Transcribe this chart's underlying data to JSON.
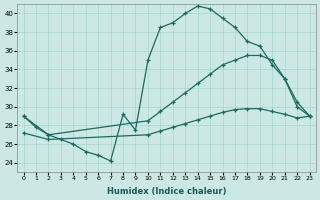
{
  "xlabel": "Humidex (Indice chaleur)",
  "background_color": "#cce8e4",
  "grid_color": "#aad4cf",
  "line_color": "#1a6b5e",
  "xlim": [
    -0.5,
    23.5
  ],
  "ylim": [
    23,
    41
  ],
  "xticks": [
    0,
    1,
    2,
    3,
    4,
    5,
    6,
    7,
    8,
    9,
    10,
    11,
    12,
    13,
    14,
    15,
    16,
    17,
    18,
    19,
    20,
    21,
    22,
    23
  ],
  "yticks": [
    24,
    26,
    28,
    30,
    32,
    34,
    36,
    38,
    40
  ],
  "curve1_x": [
    0,
    1,
    2,
    3,
    4,
    5,
    6,
    7,
    8,
    9,
    10,
    11,
    12,
    13,
    14,
    15,
    16,
    17,
    18,
    19,
    20,
    21,
    22,
    23
  ],
  "curve1_y": [
    29.0,
    27.8,
    27.0,
    26.5,
    26.0,
    25.2,
    24.8,
    24.2,
    29.2,
    27.5,
    35.0,
    38.5,
    39.0,
    40.0,
    40.8,
    40.5,
    39.5,
    38.5,
    37.0,
    36.5,
    34.5,
    33.0,
    30.0,
    29.0
  ],
  "curve2_x": [
    0,
    2,
    10,
    11,
    12,
    13,
    14,
    15,
    16,
    17,
    18,
    19,
    20,
    21,
    22,
    23
  ],
  "curve2_y": [
    29.0,
    27.0,
    28.5,
    29.5,
    30.5,
    31.5,
    32.5,
    33.5,
    34.5,
    35.0,
    35.5,
    35.5,
    35.0,
    33.0,
    30.5,
    29.0
  ],
  "curve3_x": [
    0,
    2,
    10,
    11,
    12,
    13,
    14,
    15,
    16,
    17,
    18,
    19,
    20,
    21,
    22,
    23
  ],
  "curve3_y": [
    27.2,
    26.5,
    27.0,
    27.4,
    27.8,
    28.2,
    28.6,
    29.0,
    29.4,
    29.7,
    29.8,
    29.8,
    29.5,
    29.2,
    28.8,
    29.0
  ]
}
